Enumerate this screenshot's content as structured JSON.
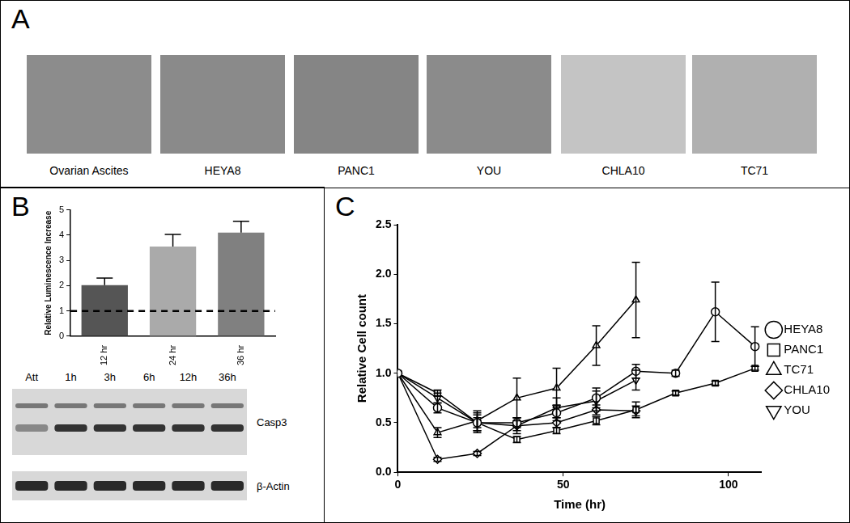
{
  "panel_labels": [
    "A",
    "B",
    "C"
  ],
  "images": [
    "Ovarian Ascites",
    "HEYA8",
    "PANC1",
    "YOU",
    "CHLA10",
    "TC71"
  ],
  "blot": {
    "lanes": [
      "Att",
      "1h",
      "3h",
      "6h",
      "12h",
      "36h"
    ],
    "bands": [
      "Casp3",
      "β-Actin"
    ]
  },
  "chart_data": [
    {
      "type": "bar",
      "y_label": "Relative Luminescence Increase",
      "categories": [
        "12 hr",
        "24 hr",
        "36 hr"
      ],
      "values": [
        2.02,
        3.55,
        4.1
      ],
      "errors": [
        0.28,
        0.48,
        0.45
      ],
      "colors": [
        "#555555",
        "#aaaaaa",
        "#808080"
      ],
      "baseline": 1,
      "ylim": [
        0,
        5
      ],
      "yticks": [
        0,
        1,
        2,
        3,
        4,
        5
      ],
      "grid": false
    },
    {
      "type": "line",
      "x_label": "Time (hr)",
      "y_label": "Relative Cell count",
      "xlim": [
        0,
        110
      ],
      "xticks": [
        0,
        50,
        100
      ],
      "ylim": [
        0,
        2.5
      ],
      "yticks": [
        {
          "value": 0,
          "label": "0.0"
        },
        {
          "value": 0.5,
          "label": "0.5"
        },
        {
          "value": 1,
          "label": "1.0"
        },
        {
          "value": 1.5,
          "label": "1.5"
        },
        {
          "value": 2,
          "label": "2.0"
        },
        {
          "value": 2.5,
          "label": "2.5"
        }
      ],
      "grid": false,
      "legend": "right",
      "series": [
        {
          "name": "HEYA8",
          "color": "#000000",
          "marker": "circle",
          "x": [
            0,
            12,
            24,
            36,
            48,
            60,
            72,
            84,
            96,
            108
          ],
          "values": [
            1.0,
            0.65,
            0.5,
            0.5,
            0.6,
            0.75,
            1.02,
            1.0,
            1.62,
            1.27
          ],
          "errors": [
            0,
            0.05,
            0.1,
            0.05,
            0.08,
            0.1,
            0.07,
            0.03,
            0.3,
            0.2
          ]
        },
        {
          "name": "PANC1",
          "color": "#000000",
          "marker": "square",
          "x": [
            0,
            12,
            24,
            36,
            48,
            60,
            72,
            84,
            96,
            108
          ],
          "values": [
            1.0,
            0.8,
            0.5,
            0.33,
            0.42,
            0.52,
            0.63,
            0.8,
            0.9,
            1.05
          ],
          "errors": [
            0,
            0.03,
            0.05,
            0.03,
            0.03,
            0.04,
            0.08,
            0.02,
            0.02,
            0.02
          ]
        },
        {
          "name": "TC71",
          "color": "#000000",
          "marker": "triangle",
          "x": [
            0,
            12,
            24,
            36,
            48,
            60,
            72
          ],
          "values": [
            1.0,
            0.4,
            0.52,
            0.75,
            0.85,
            1.28,
            1.74
          ],
          "errors": [
            0,
            0.05,
            0.1,
            0.2,
            0.2,
            0.2,
            0.38
          ]
        },
        {
          "name": "CHLA10",
          "color": "#000000",
          "marker": "diamond",
          "x": [
            0,
            12,
            24,
            36,
            48,
            60,
            72
          ],
          "values": [
            1.0,
            0.13,
            0.19,
            0.47,
            0.5,
            0.63,
            0.62
          ],
          "errors": [
            0,
            0.02,
            0.02,
            0.05,
            0.05,
            0.05,
            0.05
          ]
        },
        {
          "name": "YOU",
          "color": "#000000",
          "marker": "triangle-down",
          "x": [
            0,
            12,
            24,
            36,
            48,
            60,
            72
          ],
          "values": [
            1.0,
            0.75,
            0.5,
            0.47,
            0.65,
            0.72,
            0.93
          ],
          "errors": [
            0,
            0.05,
            0.08,
            0.08,
            0.1,
            0.1,
            0.1
          ]
        }
      ]
    }
  ]
}
